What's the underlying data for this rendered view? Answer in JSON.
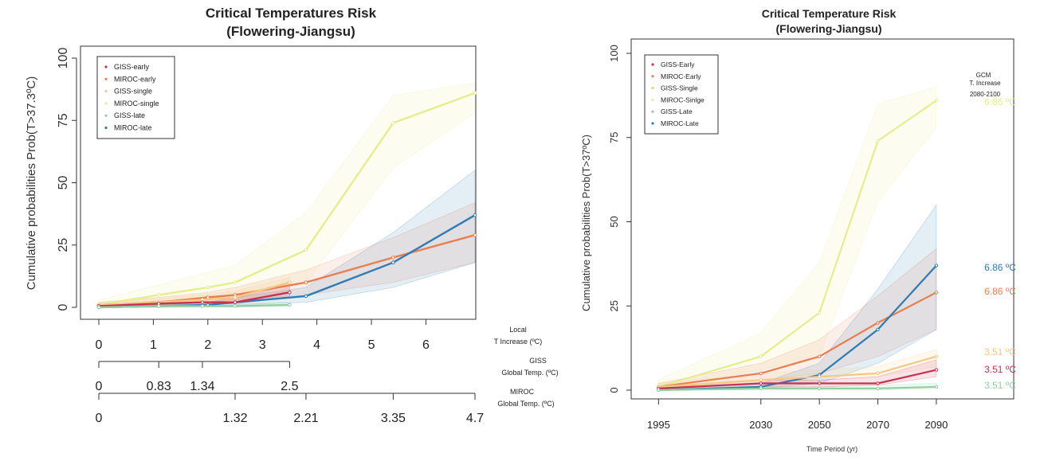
{
  "chart_data": [
    {
      "type": "line",
      "title": "Critical Temperatures Risk",
      "subtitle": "(Flowering-Jiangsu)",
      "ylabel": "Cumulative probabilities Prob(T>37.3ºC)",
      "ylim": [
        0,
        100
      ],
      "y_ticks": [
        0,
        25,
        50,
        75,
        100
      ],
      "x_axes": [
        {
          "label_line1": "Local",
          "label_line2": "T Increase (ºC)",
          "ticks": [
            0,
            1,
            2,
            3,
            4,
            5,
            6
          ],
          "tick_labels": [
            "0",
            "1",
            "2",
            "3",
            "4",
            "5",
            "6"
          ]
        },
        {
          "label_line1": "GISS",
          "label_line2": "Global Temp. (ºC)",
          "ticks": [
            0,
            0.83,
            1.34,
            2.5
          ],
          "tick_labels": [
            "0",
            "0.83",
            "1.34",
            "2.5"
          ],
          "local_positions": [
            0,
            1.1,
            1.9,
            3.5
          ]
        },
        {
          "label_line1": "MIROC",
          "label_line2": "Global Temp. (ºC)",
          "ticks": [
            0,
            1.32,
            2.21,
            3.35,
            4.7
          ],
          "tick_labels": [
            "0",
            "1.32",
            "2.21",
            "3.35",
            "4.7"
          ],
          "local_positions": [
            0,
            2.5,
            3.8,
            5.4,
            6.9
          ]
        }
      ],
      "xlim": [
        0,
        6.9
      ],
      "legend": {
        "position": "top-left"
      },
      "series": [
        {
          "name": "GISS-early",
          "color": "#c8324e",
          "x": [
            0,
            1.1,
            1.9,
            2.5,
            3.5
          ],
          "y": [
            0.5,
            1.5,
            2,
            2,
            6
          ],
          "band_low": [
            0,
            1,
            1.5,
            1.5,
            4
          ],
          "band_high": [
            1,
            2.5,
            3,
            3.5,
            9
          ]
        },
        {
          "name": "MIROC-early",
          "color": "#e87f50",
          "x": [
            0,
            1.1,
            2.0,
            2.5,
            3.8,
            5.4,
            6.9
          ],
          "y": [
            1,
            2,
            4,
            5,
            10,
            20,
            29
          ],
          "band_low": [
            0.5,
            1,
            2,
            3,
            5,
            10,
            18
          ],
          "band_high": [
            2,
            4,
            6,
            8,
            15,
            28,
            42
          ]
        },
        {
          "name": "GISS-single",
          "color": "#f5c883",
          "x": [
            0,
            1.1,
            1.9,
            2.5,
            3.5
          ],
          "y": [
            1,
            2,
            3,
            4,
            10
          ],
          "band_low": [
            0.5,
            1,
            2,
            3,
            6
          ],
          "band_high": [
            2,
            3.5,
            5,
            6.5,
            12
          ]
        },
        {
          "name": "MIROC-single",
          "color": "#e4ee8d",
          "x": [
            0,
            1.1,
            2.0,
            2.5,
            3.8,
            5.4,
            6.9
          ],
          "y": [
            1,
            5,
            8,
            10,
            23,
            74,
            86
          ],
          "band_low": [
            0.5,
            2,
            4,
            6,
            10,
            56,
            78
          ],
          "band_high": [
            3,
            9,
            14,
            17,
            38,
            85,
            90
          ]
        },
        {
          "name": "GISS-late",
          "color": "#8fd1a0",
          "x": [
            0,
            1.1,
            1.9,
            2.5,
            3.5
          ],
          "y": [
            0,
            0.5,
            0.5,
            0.5,
            1
          ],
          "band_low": [
            0,
            0,
            0,
            0,
            0.5
          ],
          "band_high": [
            0.5,
            1,
            1,
            1.5,
            2
          ]
        },
        {
          "name": "MIROC-late",
          "color": "#2f7bb5",
          "x": [
            0,
            1.1,
            2.0,
            2.5,
            3.8,
            5.4,
            6.9
          ],
          "y": [
            0,
            0.5,
            1,
            2,
            4.5,
            18,
            37
          ],
          "band_low": [
            0,
            0,
            0.5,
            1,
            2,
            8,
            18
          ],
          "band_high": [
            0.5,
            1,
            2,
            4,
            8,
            30,
            55
          ]
        }
      ]
    },
    {
      "type": "line",
      "title": "Critical Temperature Risk",
      "subtitle": "(Flowering-Jiangsu)",
      "ylabel": "Cumulative probabilities Prob(T>37ºC)",
      "xlabel": "Time Period (yr)",
      "ylim": [
        0,
        100
      ],
      "y_ticks": [
        0,
        25,
        50,
        75,
        100
      ],
      "x_ticks": [
        1995,
        2030,
        2050,
        2070,
        2090
      ],
      "xlim": [
        1990,
        2120
      ],
      "legend": {
        "position": "top-left"
      },
      "annotation_header": [
        "GCM",
        "T. Increase",
        "2080-2100"
      ],
      "series": [
        {
          "name": "GISS-Early",
          "color": "#c8324e",
          "x": [
            1995,
            2030,
            2050,
            2070,
            2090
          ],
          "y": [
            0.5,
            2,
            2,
            2,
            6
          ],
          "band_low": [
            0,
            1,
            1,
            1.5,
            4
          ],
          "band_high": [
            1,
            3,
            3,
            4,
            9
          ],
          "end_label": "3.51 ºC"
        },
        {
          "name": "MIROC-Early",
          "color": "#e87f50",
          "x": [
            1995,
            2030,
            2050,
            2070,
            2090
          ],
          "y": [
            1,
            5,
            10,
            20,
            29
          ],
          "band_low": [
            0.5,
            3,
            5,
            10,
            18
          ],
          "band_high": [
            2,
            8,
            15,
            28,
            42
          ],
          "end_label": "6.86 ºC"
        },
        {
          "name": "GISS-Single",
          "color": "#f5c883",
          "x": [
            1995,
            2030,
            2050,
            2070,
            2090
          ],
          "y": [
            1,
            3,
            4,
            5,
            10
          ],
          "band_low": [
            0.5,
            2,
            3,
            4,
            7
          ],
          "band_high": [
            2,
            5,
            6,
            7,
            12
          ],
          "end_label": "3.51 ºC"
        },
        {
          "name": "MIROC-Sinlge",
          "color": "#e4ee8d",
          "x": [
            1995,
            2030,
            2050,
            2070,
            2090
          ],
          "y": [
            1,
            10,
            23,
            74,
            86
          ],
          "band_low": [
            0.5,
            6,
            10,
            56,
            78
          ],
          "band_high": [
            3,
            17,
            38,
            85,
            90
          ],
          "end_label": "6.86 ºC"
        },
        {
          "name": "GISS-Late",
          "color": "#8fd1a0",
          "x": [
            1995,
            2030,
            2050,
            2070,
            2090
          ],
          "y": [
            0,
            0.5,
            0.5,
            0.5,
            1
          ],
          "band_low": [
            0,
            0,
            0,
            0,
            0.5
          ],
          "band_high": [
            0.5,
            1,
            1,
            1.5,
            2
          ],
          "end_label": "3.51 ºC"
        },
        {
          "name": "MIROC-Late",
          "color": "#2f7bb5",
          "x": [
            1995,
            2030,
            2050,
            2070,
            2090
          ],
          "y": [
            0,
            1,
            4.5,
            18,
            37
          ],
          "band_low": [
            0,
            0.5,
            2,
            8,
            18
          ],
          "band_high": [
            0.5,
            2,
            8,
            30,
            55
          ],
          "end_label": "6.86 ºC"
        }
      ]
    }
  ]
}
